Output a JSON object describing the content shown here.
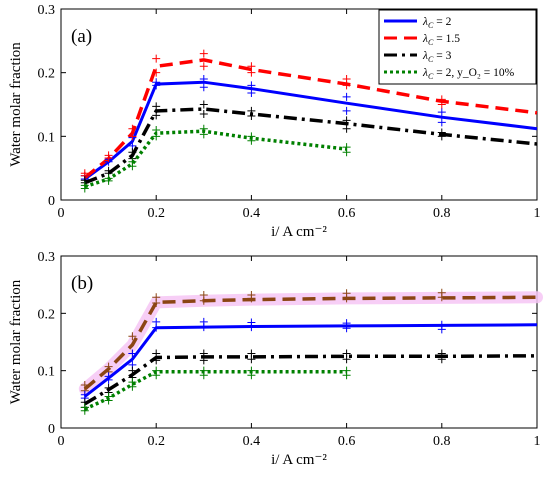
{
  "chart_data": [
    {
      "type": "line",
      "panel_label": "(a)",
      "xlabel": "i/ A cm⁻²",
      "ylabel": "Water molar fraction",
      "xlim": [
        0,
        1
      ],
      "ylim": [
        0,
        0.3
      ],
      "xticks": [
        0,
        0.2,
        0.4,
        0.6,
        0.8,
        1
      ],
      "xtick_labels": [
        "0",
        "0.2",
        "0.4",
        "0.6",
        "0.8",
        "1"
      ],
      "yticks": [
        0,
        0.1,
        0.2,
        0.3
      ],
      "ytick_labels": [
        "0",
        "0.1",
        "0.2",
        "0.3"
      ],
      "grid": false,
      "legend_position": "top-right",
      "series": [
        {
          "name": "λ_C = 2",
          "color": "#0000ff",
          "style": "solid",
          "x": [
            0.05,
            0.1,
            0.15,
            0.2,
            0.3,
            0.4,
            0.6,
            0.8,
            1.0
          ],
          "values": [
            0.033,
            0.06,
            0.092,
            0.182,
            0.185,
            0.175,
            0.152,
            0.13,
            0.112
          ],
          "markers": [
            {
              "x": 0.05,
              "y": [
                0.033,
                0.038
              ]
            },
            {
              "x": 0.1,
              "y": [
                0.06,
                0.064
              ]
            },
            {
              "x": 0.15,
              "y": [
                0.085,
                0.098
              ]
            },
            {
              "x": 0.2,
              "y": [
                0.18,
                0.185
              ]
            },
            {
              "x": 0.3,
              "y": [
                0.177,
                0.19
              ]
            },
            {
              "x": 0.4,
              "y": [
                0.168,
                0.18
              ]
            },
            {
              "x": 0.6,
              "y": [
                0.14,
                0.162
              ]
            },
            {
              "x": 0.8,
              "y": [
                0.122,
                0.138
              ]
            }
          ]
        },
        {
          "name": "λ_C = 1.5",
          "color": "#ff0000",
          "style": "dashed",
          "x": [
            0.05,
            0.1,
            0.15,
            0.2,
            0.3,
            0.4,
            0.6,
            0.8,
            1.0
          ],
          "values": [
            0.035,
            0.065,
            0.105,
            0.21,
            0.22,
            0.205,
            0.182,
            0.155,
            0.137
          ],
          "markers": [
            {
              "x": 0.05,
              "y": [
                0.038,
                0.042
              ]
            },
            {
              "x": 0.1,
              "y": [
                0.066,
                0.07
              ]
            },
            {
              "x": 0.15,
              "y": [
                0.1,
                0.112
              ]
            },
            {
              "x": 0.2,
              "y": [
                0.2,
                0.222
              ]
            },
            {
              "x": 0.3,
              "y": [
                0.21,
                0.23
              ]
            },
            {
              "x": 0.4,
              "y": [
                0.2,
                0.21
              ]
            },
            {
              "x": 0.6,
              "y": [
                0.18,
                0.19
              ]
            },
            {
              "x": 0.8,
              "y": [
                0.15,
                0.158
              ]
            }
          ]
        },
        {
          "name": "λ_C = 3",
          "color": "#000000",
          "style": "dashdot",
          "x": [
            0.05,
            0.1,
            0.15,
            0.2,
            0.3,
            0.4,
            0.6,
            0.8,
            1.0
          ],
          "values": [
            0.027,
            0.042,
            0.07,
            0.14,
            0.143,
            0.135,
            0.12,
            0.103,
            0.088
          ],
          "markers": [
            {
              "x": 0.05,
              "y": [
                0.027,
                0.031
              ]
            },
            {
              "x": 0.1,
              "y": [
                0.042,
                0.046
              ]
            },
            {
              "x": 0.15,
              "y": [
                0.065,
                0.075
              ]
            },
            {
              "x": 0.2,
              "y": [
                0.133,
                0.147
              ]
            },
            {
              "x": 0.3,
              "y": [
                0.135,
                0.15
              ]
            },
            {
              "x": 0.4,
              "y": [
                0.132,
                0.14
              ]
            },
            {
              "x": 0.6,
              "y": [
                0.112,
                0.125
              ]
            },
            {
              "x": 0.8,
              "y": [
                0.1,
                0.106
              ]
            }
          ]
        },
        {
          "name": "λ_C = 2, y_O₂ = 10%",
          "color": "#008000",
          "style": "dotted",
          "x": [
            0.05,
            0.1,
            0.15,
            0.2,
            0.3,
            0.4,
            0.6
          ],
          "values": [
            0.021,
            0.033,
            0.057,
            0.105,
            0.108,
            0.097,
            0.08
          ],
          "markers": [
            {
              "x": 0.05,
              "y": [
                0.018,
                0.023
              ]
            },
            {
              "x": 0.1,
              "y": [
                0.03,
                0.034
              ]
            },
            {
              "x": 0.15,
              "y": [
                0.053,
                0.06
              ]
            },
            {
              "x": 0.2,
              "y": [
                0.1,
                0.11
              ]
            },
            {
              "x": 0.3,
              "y": [
                0.103,
                0.112
              ]
            },
            {
              "x": 0.4,
              "y": [
                0.093,
                0.1
              ]
            },
            {
              "x": 0.6,
              "y": [
                0.075,
                0.083
              ]
            }
          ]
        }
      ]
    },
    {
      "type": "line",
      "panel_label": "(b)",
      "xlabel": "i/ A cm⁻²",
      "ylabel": "Water molar fraction",
      "xlim": [
        0,
        1
      ],
      "ylim": [
        0,
        0.3
      ],
      "xticks": [
        0,
        0.2,
        0.4,
        0.6,
        0.8,
        1
      ],
      "xtick_labels": [
        "0",
        "0.2",
        "0.4",
        "0.6",
        "0.8",
        "1"
      ],
      "yticks": [
        0,
        0.1,
        0.2,
        0.3
      ],
      "ytick_labels": [
        "0",
        "0.1",
        "0.2",
        "0.3"
      ],
      "grid": false,
      "series": [
        {
          "color": "#8b4513",
          "style": "dashed",
          "highlight_color": "#f6c6f4",
          "x": [
            0.05,
            0.1,
            0.15,
            0.2,
            0.3,
            0.4,
            0.6,
            0.8,
            1.0
          ],
          "values": [
            0.068,
            0.103,
            0.145,
            0.219,
            0.222,
            0.224,
            0.226,
            0.227,
            0.228
          ],
          "markers": [
            {
              "x": 0.05,
              "y": [
                0.065,
                0.075
              ]
            },
            {
              "x": 0.1,
              "y": [
                0.098,
                0.107
              ]
            },
            {
              "x": 0.15,
              "y": [
                0.13,
                0.16
              ]
            },
            {
              "x": 0.2,
              "y": [
                0.218,
                0.228
              ]
            },
            {
              "x": 0.3,
              "y": [
                0.222,
                0.232
              ]
            },
            {
              "x": 0.4,
              "y": [
                0.226,
                0.232
              ]
            },
            {
              "x": 0.6,
              "y": [
                0.226,
                0.235
              ]
            },
            {
              "x": 0.8,
              "y": [
                0.228,
                0.236
              ]
            }
          ]
        },
        {
          "color": "#0000ff",
          "style": "solid",
          "x": [
            0.05,
            0.1,
            0.15,
            0.2,
            0.3,
            0.4,
            0.6,
            0.8,
            1.0
          ],
          "values": [
            0.055,
            0.087,
            0.12,
            0.175,
            0.176,
            0.177,
            0.178,
            0.179,
            0.18
          ],
          "markers": [
            {
              "x": 0.05,
              "y": [
                0.052,
                0.058
              ]
            },
            {
              "x": 0.1,
              "y": [
                0.084,
                0.09
              ]
            },
            {
              "x": 0.15,
              "y": [
                0.11,
                0.13
              ]
            },
            {
              "x": 0.2,
              "y": [
                0.175,
                0.185
              ]
            },
            {
              "x": 0.3,
              "y": [
                0.176,
                0.185
              ]
            },
            {
              "x": 0.4,
              "y": [
                0.176,
                0.184
              ]
            },
            {
              "x": 0.6,
              "y": [
                0.174,
                0.183
              ]
            },
            {
              "x": 0.8,
              "y": [
                0.172,
                0.18
              ]
            }
          ]
        },
        {
          "color": "#000000",
          "style": "dashdot",
          "x": [
            0.05,
            0.1,
            0.15,
            0.2,
            0.3,
            0.4,
            0.6,
            0.8,
            1.0
          ],
          "values": [
            0.042,
            0.067,
            0.093,
            0.123,
            0.124,
            0.124,
            0.125,
            0.125,
            0.126
          ],
          "markers": [
            {
              "x": 0.05,
              "y": [
                0.036,
                0.045
              ]
            },
            {
              "x": 0.1,
              "y": [
                0.062,
                0.07
              ]
            },
            {
              "x": 0.15,
              "y": [
                0.088,
                0.1
              ]
            },
            {
              "x": 0.2,
              "y": [
                0.118,
                0.13
              ]
            },
            {
              "x": 0.3,
              "y": [
                0.118,
                0.13
              ]
            },
            {
              "x": 0.4,
              "y": [
                0.12,
                0.13
              ]
            },
            {
              "x": 0.6,
              "y": [
                0.12,
                0.13
              ]
            },
            {
              "x": 0.8,
              "y": [
                0.12,
                0.13
              ]
            }
          ]
        },
        {
          "color": "#008000",
          "style": "dotted",
          "x": [
            0.05,
            0.1,
            0.15,
            0.2,
            0.3,
            0.4,
            0.6
          ],
          "values": [
            0.033,
            0.052,
            0.076,
            0.098,
            0.098,
            0.098,
            0.098
          ],
          "markers": [
            {
              "x": 0.05,
              "y": [
                0.03,
                0.036
              ]
            },
            {
              "x": 0.1,
              "y": [
                0.048,
                0.055
              ]
            },
            {
              "x": 0.15,
              "y": [
                0.072,
                0.08
              ]
            },
            {
              "x": 0.2,
              "y": [
                0.092,
                0.1
              ]
            },
            {
              "x": 0.3,
              "y": [
                0.092,
                0.1
              ]
            },
            {
              "x": 0.4,
              "y": [
                0.092,
                0.1
              ]
            },
            {
              "x": 0.6,
              "y": [
                0.092,
                0.1
              ]
            }
          ]
        }
      ]
    }
  ]
}
